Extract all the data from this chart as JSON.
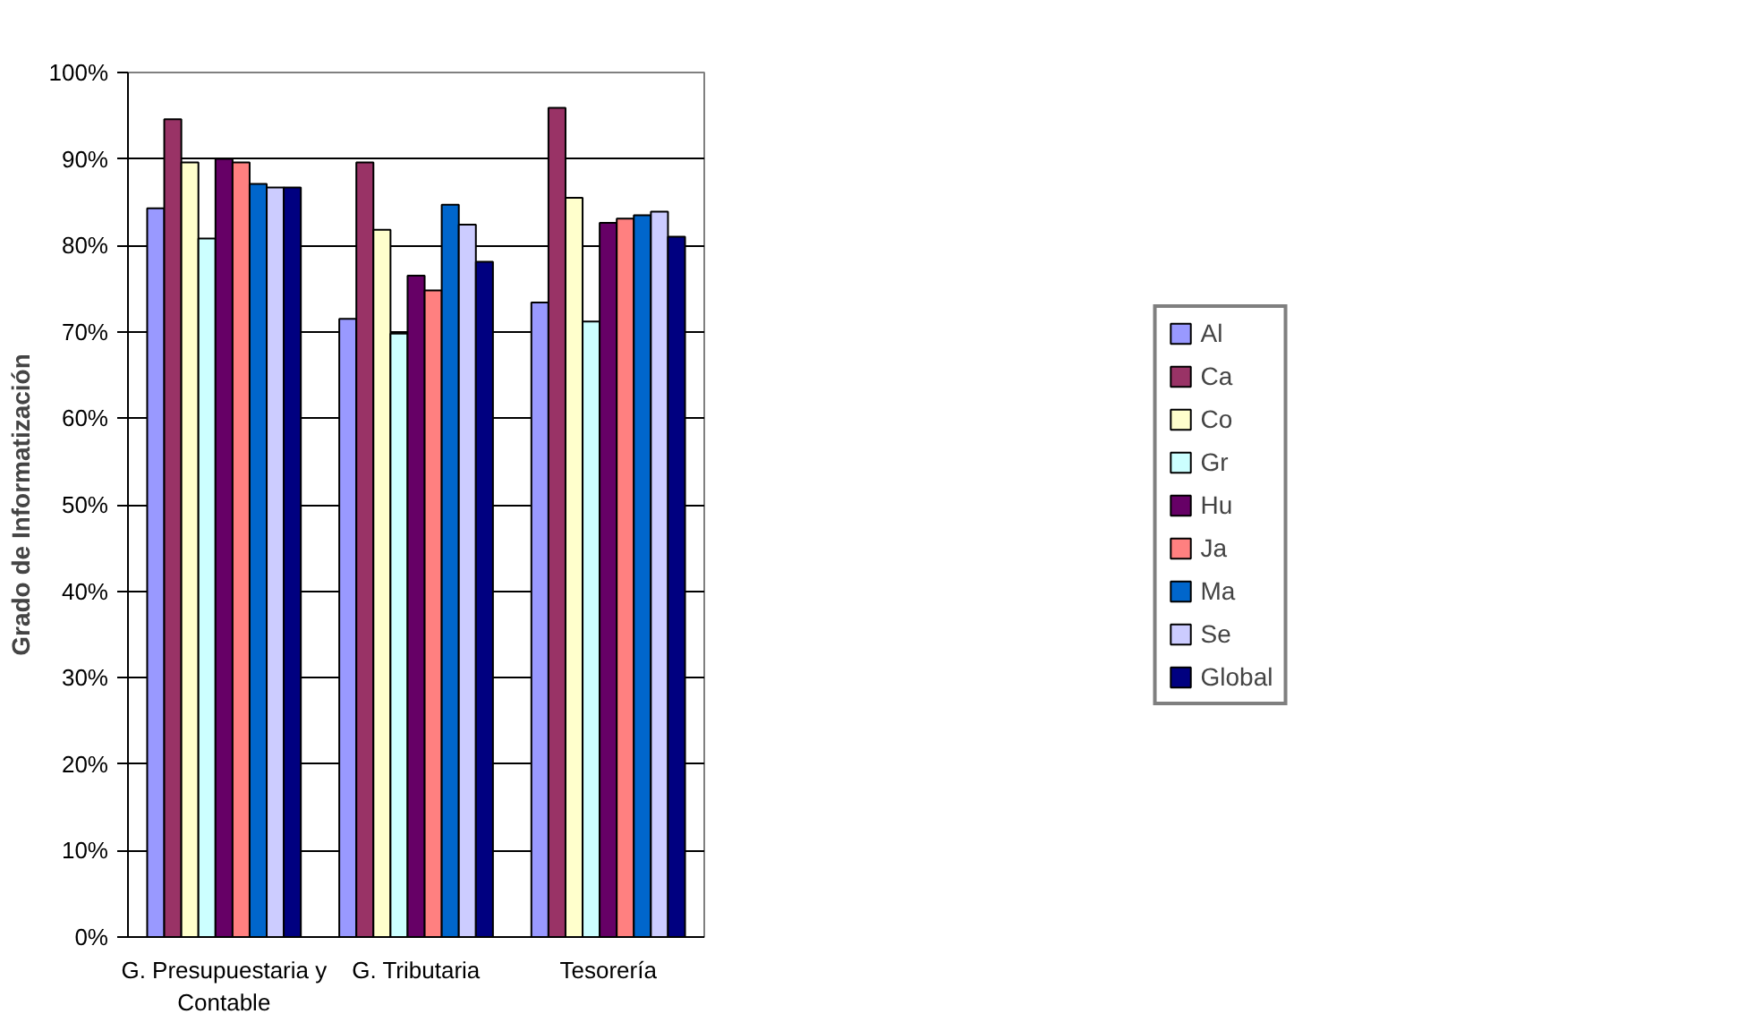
{
  "chart_data": {
    "type": "bar",
    "ylabel": "Grado de Informatización",
    "categories": [
      "G. Presupuestaria y Contable",
      "G. Tributaria",
      "Tesorería"
    ],
    "series": [
      {
        "name": "Al",
        "color": "#9999ff",
        "values": [
          84.3,
          71.5,
          73.4
        ]
      },
      {
        "name": "Ca",
        "color": "#993366",
        "values": [
          94.6,
          89.6,
          95.9
        ]
      },
      {
        "name": "Co",
        "color": "#ffffcc",
        "values": [
          89.6,
          81.8,
          85.5
        ]
      },
      {
        "name": "Gr",
        "color": "#ccffff",
        "values": [
          80.8,
          69.8,
          71.2
        ]
      },
      {
        "name": "Hu",
        "color": "#660066",
        "values": [
          90.0,
          76.5,
          82.6
        ]
      },
      {
        "name": "Ja",
        "color": "#ff8080",
        "values": [
          89.6,
          74.8,
          83.1
        ]
      },
      {
        "name": "Ma",
        "color": "#0066cc",
        "values": [
          87.1,
          84.7,
          83.5
        ]
      },
      {
        "name": "Se",
        "color": "#ccccff",
        "values": [
          86.7,
          82.4,
          83.9
        ]
      },
      {
        "name": "Global",
        "color": "#000080",
        "values": [
          86.7,
          78.1,
          81.0
        ]
      }
    ],
    "ylim": [
      0,
      100
    ],
    "yticks": [
      {
        "value": 0,
        "label": "0%"
      },
      {
        "value": 10,
        "label": "10%"
      },
      {
        "value": 20,
        "label": "20%"
      },
      {
        "value": 30,
        "label": "30%"
      },
      {
        "value": 40,
        "label": "40%"
      },
      {
        "value": 50,
        "label": "50%"
      },
      {
        "value": 60,
        "label": "60%"
      },
      {
        "value": 70,
        "label": "70%"
      },
      {
        "value": 80,
        "label": "80%"
      },
      {
        "value": 90,
        "label": "90%"
      },
      {
        "value": 100,
        "label": "100%"
      }
    ],
    "grid": "y",
    "legend": "right"
  }
}
